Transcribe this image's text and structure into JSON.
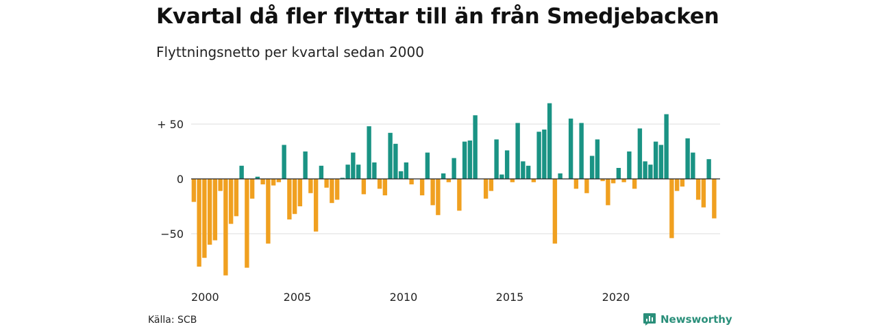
{
  "title": "Kvartal då fler flyttar till än från Smedjebacken",
  "subtitle": "Flyttningsnetto per kvartal sedan 2000",
  "source": "Källa: SCB",
  "brand": "Newsworthy",
  "colors": {
    "positive": "#1a9384",
    "negative": "#f0a020",
    "grid": "#dddddd",
    "axis": "#222222",
    "brand": "#2a8f7a"
  },
  "chart_data": {
    "type": "bar",
    "x_start": 2000,
    "periods_per_year": 4,
    "ylim": [
      -95,
      75
    ],
    "yticks": [
      50,
      0,
      -50
    ],
    "ytick_labels": [
      "+ 50",
      "0",
      "−50"
    ],
    "xticks": [
      2000,
      2005,
      2010,
      2015,
      2020
    ],
    "xtick_labels": [
      "2000",
      "2005",
      "2010",
      "2015",
      "2020"
    ],
    "grid": true,
    "values": [
      -21,
      -80,
      -72,
      -60,
      -56,
      -11,
      -88,
      -41,
      -34,
      12,
      -81,
      -18,
      2,
      -5,
      -59,
      -6,
      -3,
      31,
      -37,
      -32,
      -25,
      25,
      -13,
      -48,
      12,
      -8,
      -22,
      -19,
      1,
      13,
      24,
      13,
      -14,
      48,
      15,
      -9,
      -15,
      42,
      32,
      7,
      15,
      -5,
      0,
      -15,
      24,
      -24,
      -33,
      5,
      -3,
      19,
      -29,
      34,
      35,
      58,
      0,
      -18,
      -11,
      36,
      4,
      26,
      -3,
      51,
      16,
      12,
      -3,
      43,
      45,
      69,
      -59,
      5,
      0,
      55,
      -9,
      51,
      -13,
      21,
      36,
      -2,
      -24,
      -4,
      10,
      -3,
      25,
      -9,
      46,
      16,
      13,
      34,
      31,
      59,
      -54,
      -11,
      -7,
      37,
      24,
      -19,
      -26,
      18,
      -36
    ]
  }
}
